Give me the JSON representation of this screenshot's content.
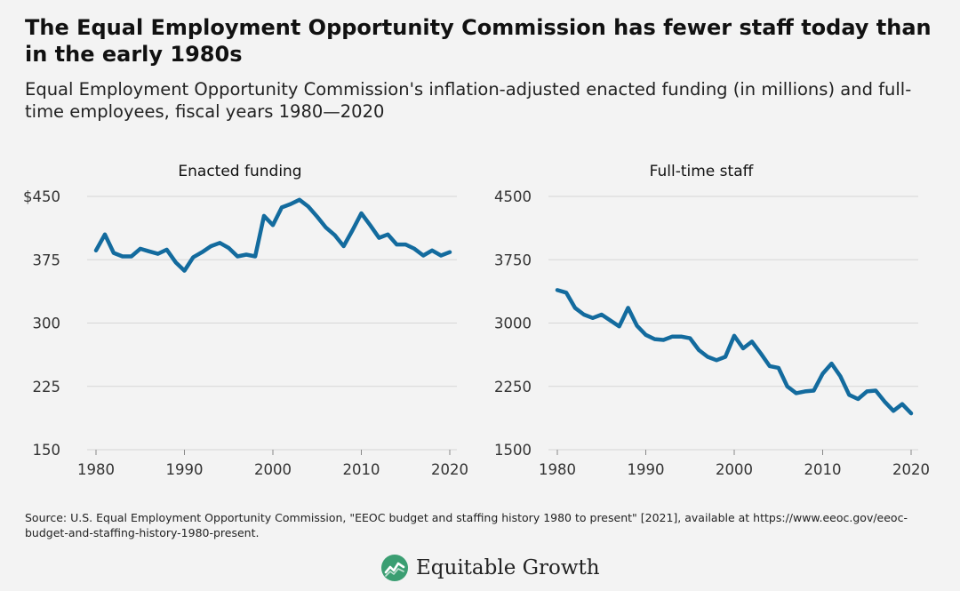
{
  "header": {
    "title": "The Equal Employment Opportunity Commission has fewer staff today than in the early 1980s",
    "subtitle": "Equal Employment Opportunity Commission's inflation-adjusted enacted funding (in millions) and full-time employees, fiscal years 1980—2020"
  },
  "chart_data": [
    {
      "type": "line",
      "title": "Enacted funding",
      "xlabel": "",
      "ylabel": "",
      "x": [
        1980,
        1981,
        1982,
        1983,
        1984,
        1985,
        1986,
        1987,
        1988,
        1989,
        1990,
        1991,
        1992,
        1993,
        1994,
        1995,
        1996,
        1997,
        1998,
        1999,
        2000,
        2001,
        2002,
        2003,
        2004,
        2005,
        2006,
        2007,
        2008,
        2009,
        2010,
        2011,
        2012,
        2013,
        2014,
        2015,
        2016,
        2017,
        2018,
        2019,
        2020
      ],
      "series": [
        {
          "values": [
            386,
            405,
            383,
            379,
            379,
            388,
            385,
            382,
            387,
            372,
            362,
            378,
            384,
            391,
            395,
            389,
            379,
            381,
            379,
            427,
            416,
            437,
            441,
            446,
            438,
            426,
            413,
            404,
            391,
            410,
            430,
            416,
            401,
            405,
            393,
            393,
            388,
            380,
            386,
            380,
            384
          ],
          "color": "#136b9e"
        }
      ],
      "xlim": [
        1980,
        2020
      ],
      "ylim": [
        150,
        450
      ],
      "xticks": [
        1980,
        1990,
        2000,
        2010,
        2020
      ],
      "yticks": [
        150,
        225,
        300,
        375,
        450
      ],
      "ytick_labels": [
        "150",
        "225",
        "300",
        "375",
        "$450"
      ],
      "grid": true,
      "legend": "none"
    },
    {
      "type": "line",
      "title": "Full-time staff",
      "xlabel": "",
      "ylabel": "",
      "x": [
        1980,
        1981,
        1982,
        1983,
        1984,
        1985,
        1986,
        1987,
        1988,
        1989,
        1990,
        1991,
        1992,
        1993,
        1994,
        1995,
        1996,
        1997,
        1998,
        1999,
        2000,
        2001,
        2002,
        2003,
        2004,
        2005,
        2006,
        2007,
        2008,
        2009,
        2010,
        2011,
        2012,
        2013,
        2014,
        2015,
        2016,
        2017,
        2018,
        2019,
        2020
      ],
      "series": [
        {
          "values": [
            3390,
            3360,
            3180,
            3100,
            3060,
            3100,
            3030,
            2960,
            3180,
            2970,
            2860,
            2810,
            2800,
            2840,
            2840,
            2820,
            2680,
            2600,
            2560,
            2600,
            2850,
            2700,
            2780,
            2640,
            2490,
            2470,
            2250,
            2170,
            2190,
            2200,
            2400,
            2520,
            2370,
            2150,
            2100,
            2190,
            2200,
            2070,
            1960,
            2040,
            1930
          ],
          "color": "#136b9e"
        }
      ],
      "xlim": [
        1980,
        2020
      ],
      "ylim": [
        1500,
        4500
      ],
      "xticks": [
        1980,
        1990,
        2000,
        2010,
        2020
      ],
      "yticks": [
        1500,
        2250,
        3000,
        3750,
        4500
      ],
      "ytick_labels": [
        "1500",
        "2250",
        "3000",
        "3750",
        "4500"
      ],
      "grid": true,
      "legend": "none"
    }
  ],
  "footer": {
    "source": "Source: U.S. Equal Employment Opportunity Commission, \"EEOC budget and staffing history 1980 to present\" [2021], available at https://www.eeoc.gov/eeoc-budget-and-staffing-history-1980-present.",
    "logo_text": "Equitable Growth",
    "logo_icon": "growth-chart-icon"
  },
  "colors": {
    "line": "#136b9e",
    "grid": "#d6d6d6",
    "logo_green": "#3b9e72",
    "background": "#f3f3f3"
  }
}
